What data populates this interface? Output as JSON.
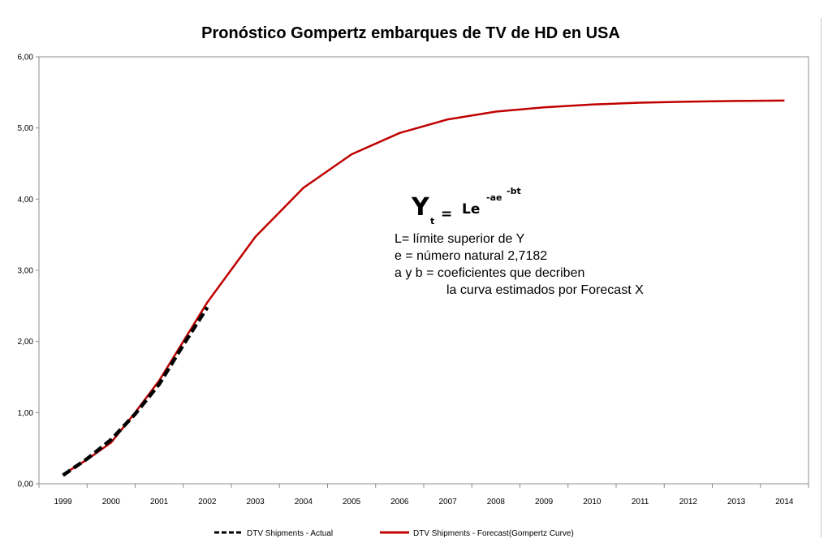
{
  "chart_data": {
    "type": "line",
    "title": "Pronóstico Gompertz  embarques de TV de HD en USA",
    "xlabel": "",
    "ylabel": "",
    "x": [
      "1999",
      "2000",
      "2001",
      "2002",
      "2003",
      "2004",
      "2005",
      "2006",
      "2007",
      "2008",
      "2009",
      "2010",
      "2011",
      "2012",
      "2013",
      "2014"
    ],
    "ylim": [
      0,
      6
    ],
    "yticks": [
      "0,00",
      "1,00",
      "2,00",
      "3,00",
      "4,00",
      "5,00",
      "6,00"
    ],
    "grid": false,
    "legend_position": "bottom",
    "series": [
      {
        "name": "DTV Shipments - Actual",
        "color": "#000000",
        "style": "dashed",
        "x": [
          1999,
          1999.5,
          2000,
          2000.5,
          2001,
          2001.5,
          2002
        ],
        "values": [
          0.12,
          0.35,
          0.62,
          0.98,
          1.4,
          1.95,
          2.48
        ]
      },
      {
        "name": "DTV Shipments - Forecast(Gompertz Curve)",
        "color": "#c00000",
        "style": "solid",
        "x": [
          1999,
          1999.5,
          2000,
          2000.5,
          2001,
          2001.5,
          2002,
          2003,
          2004,
          2005,
          2006,
          2007,
          2008,
          2009,
          2010,
          2011,
          2012,
          2013,
          2014
        ],
        "values": [
          0.13,
          0.34,
          0.58,
          1.0,
          1.45,
          2.0,
          2.55,
          3.47,
          4.16,
          4.63,
          4.93,
          5.12,
          5.23,
          5.29,
          5.33,
          5.355,
          5.37,
          5.38,
          5.385
        ]
      }
    ],
    "annotations": {
      "formula": {
        "y_letter": "Y",
        "subscript": "t",
        "equals": "=",
        "base": "Le",
        "exponent": "-ae",
        "exponent_power": "-bt"
      },
      "notes": [
        "L= límite superior de Y",
        "e = número natural 2,7182",
        "a y b = coeficientes que decriben",
        "la curva estimados por Forecast X"
      ]
    }
  }
}
